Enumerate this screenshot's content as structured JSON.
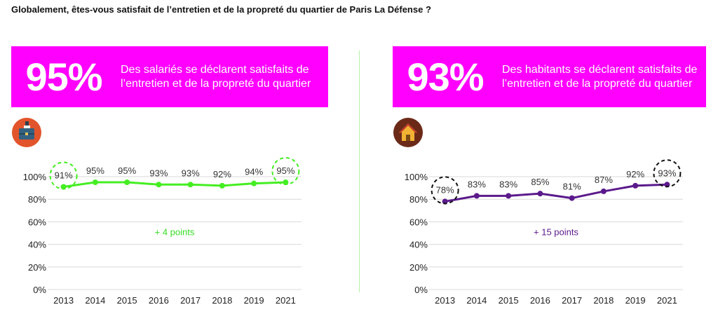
{
  "page_title": "Globalement, êtes-vous satisfait de l’entretien et de la propreté du quartier de Paris La Défense ?",
  "panels": [
    {
      "big_value": "95%",
      "description": "Des salariés se déclarent satisfaits de l’entretien et de la propreté du quartier",
      "icon": "briefcase-icon",
      "banner_color": "#ff00ff"
    },
    {
      "big_value": "93%",
      "description": "Des habitants se déclarent satisfaits de l’entretien et de la propreté du quartier",
      "icon": "house-icon",
      "banner_color": "#ff00ff"
    }
  ],
  "chart_data": [
    {
      "type": "line",
      "x": [
        "2013",
        "2014",
        "2015",
        "2016",
        "2017",
        "2018",
        "2019",
        "2021"
      ],
      "series": [
        {
          "values": [
            91,
            95,
            95,
            93,
            93,
            92,
            94,
            95
          ],
          "labels": [
            "91%",
            "95%",
            "95%",
            "93%",
            "93%",
            "92%",
            "94%",
            "95%"
          ],
          "color": "#44ee22"
        }
      ],
      "yticks": [
        "0%",
        "20%",
        "40%",
        "60%",
        "80%",
        "100%"
      ],
      "ylim": [
        0,
        100
      ],
      "grid": true,
      "annotation": "+ 4 points",
      "annotation_color": "#33dd22",
      "highlighted_points": [
        "2013",
        "2021"
      ],
      "highlight_color": "#44ee22"
    },
    {
      "type": "line",
      "x": [
        "2013",
        "2014",
        "2015",
        "2016",
        "2017",
        "2018",
        "2019",
        "2021"
      ],
      "series": [
        {
          "values": [
            78,
            83,
            83,
            85,
            81,
            87,
            92,
            93
          ],
          "labels": [
            "78%",
            "83%",
            "83%",
            "85%",
            "81%",
            "87%",
            "92%",
            "93%"
          ],
          "color": "#5b1a8c"
        }
      ],
      "yticks": [
        "0%",
        "20%",
        "40%",
        "60%",
        "80%",
        "100%"
      ],
      "ylim": [
        0,
        100
      ],
      "grid": true,
      "annotation": "+ 15 points",
      "annotation_color": "#5b1a8c",
      "highlighted_points": [
        "2013",
        "2021"
      ],
      "highlight_color": "#111111"
    }
  ]
}
